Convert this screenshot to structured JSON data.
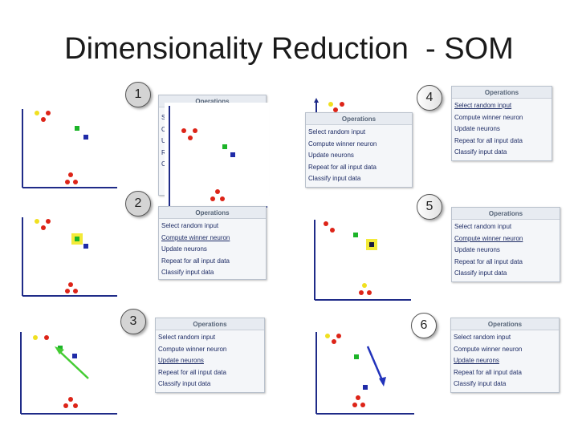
{
  "title": "Dimensionality Reduction  - SOM",
  "operations_header": "Operations",
  "operations": [
    "Select random input",
    "Compute winner neuron",
    "Update neurons",
    "Repeat for all input data",
    "Classify input data"
  ],
  "operations_stub": [
    "S",
    "C",
    "U",
    "R",
    "C"
  ],
  "steps": [
    "1",
    "2",
    "3",
    "4",
    "5",
    "6"
  ],
  "colors": {
    "input_red": "#dd2418",
    "input_yellow": "#f0e020",
    "neuron_green": "#1cb428",
    "neuron_blue": "#1f2ba8",
    "axis": "#1f2b88",
    "highlight": "#f3ea39",
    "arrow_green": "#44cc33",
    "arrow_blue": "#2233bb"
  }
}
